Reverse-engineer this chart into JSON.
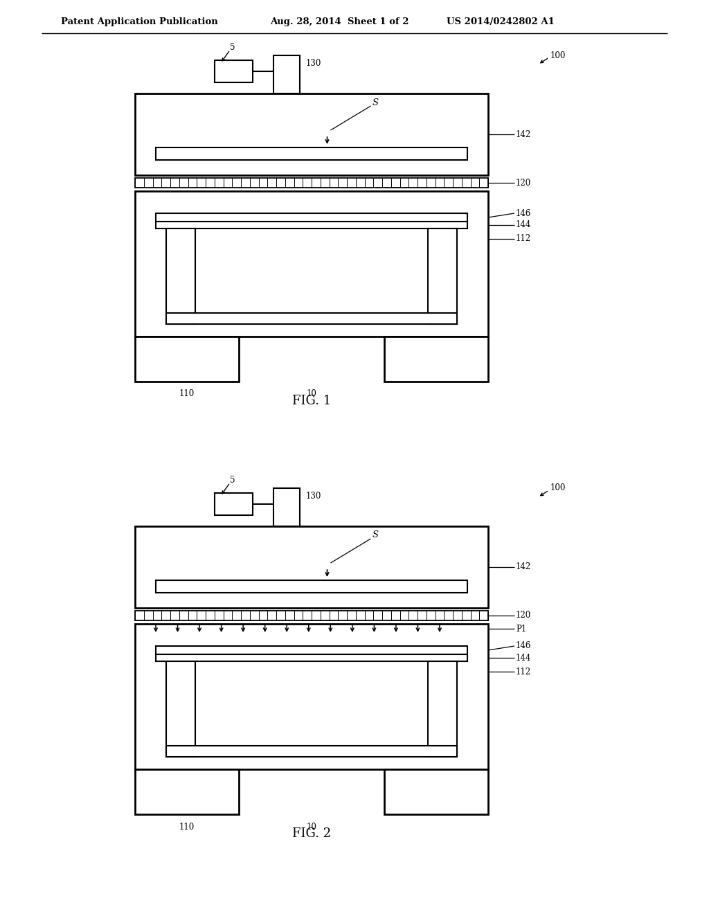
{
  "bg_color": "#ffffff",
  "line_color": "#000000",
  "header_left": "Patent Application Publication",
  "header_mid": "Aug. 28, 2014  Sheet 1 of 2",
  "header_right": "US 2014/0242802 A1",
  "fig1_label": "FIG. 1",
  "fig2_label": "FIG. 2",
  "labels": {
    "100_1": "100",
    "5_1": "5",
    "130_1": "130",
    "S_1": "S",
    "142_1": "142",
    "120_1": "120",
    "146_1": "146",
    "144_1": "144",
    "112_1": "112",
    "110_1": "110",
    "10_1": "10",
    "100_2": "100",
    "5_2": "5",
    "130_2": "130",
    "S_2": "S",
    "142_2": "142",
    "120_2": "120",
    "P1_2": "P1",
    "146_2": "146",
    "144_2": "144",
    "112_2": "112",
    "110_2": "110",
    "10_2": "10"
  }
}
